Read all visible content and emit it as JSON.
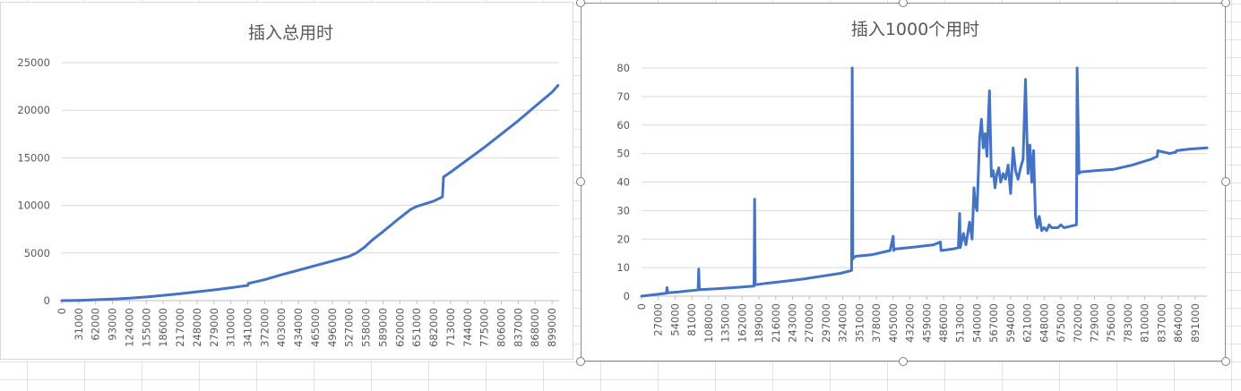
{
  "chart_data": [
    {
      "type": "line",
      "title": "插入总用时",
      "xlabel": "",
      "ylabel": "",
      "ylim": [
        0,
        25000
      ],
      "yticks": [
        "0",
        "5000",
        "10000",
        "15000",
        "20000",
        "25000"
      ],
      "xtick_labels": [
        "0",
        "31000",
        "62000",
        "93000",
        "124000",
        "155000",
        "186000",
        "217000",
        "248000",
        "279000",
        "310000",
        "341000",
        "372000",
        "403000",
        "434000",
        "465000",
        "496000",
        "527000",
        "558000",
        "589000",
        "620000",
        "651000",
        "682000",
        "713000",
        "744000",
        "775000",
        "806000",
        "837000",
        "868000",
        "899000"
      ],
      "xlim": [
        0,
        912000
      ],
      "grid": true,
      "legend": "none",
      "color": "#4472c4",
      "x": [
        0,
        31000,
        62000,
        93000,
        124000,
        155000,
        186000,
        217000,
        248000,
        279000,
        310000,
        325000,
        341000,
        342000,
        372000,
        403000,
        434000,
        465000,
        496000,
        527000,
        540000,
        555000,
        570000,
        589000,
        620000,
        640000,
        651000,
        682000,
        698000,
        700000,
        713000,
        744000,
        775000,
        806000,
        837000,
        868000,
        899000,
        910000
      ],
      "y": [
        0,
        30,
        90,
        160,
        260,
        390,
        550,
        730,
        930,
        1130,
        1350,
        1480,
        1600,
        1800,
        2200,
        2720,
        3200,
        3680,
        4150,
        4650,
        5000,
        5600,
        6400,
        7250,
        8700,
        9600,
        9900,
        10450,
        10900,
        13000,
        13500,
        14800,
        16100,
        17500,
        18900,
        20400,
        21900,
        22600
      ]
    },
    {
      "type": "line",
      "title": "插入1000个用时",
      "xlabel": "",
      "ylabel": "",
      "ylim": [
        0,
        80
      ],
      "yticks": [
        "0",
        "10",
        "20",
        "30",
        "40",
        "50",
        "60",
        "70",
        "80"
      ],
      "xtick_labels": [
        "0",
        "27000",
        "54000",
        "81000",
        "108000",
        "135000",
        "162000",
        "189000",
        "216000",
        "243000",
        "270000",
        "297000",
        "324000",
        "351000",
        "378000",
        "405000",
        "432000",
        "459000",
        "486000",
        "513000",
        "540000",
        "567000",
        "594000",
        "621000",
        "648000",
        "675000",
        "702000",
        "729000",
        "756000",
        "783000",
        "810000",
        "837000",
        "864000",
        "891000"
      ],
      "xlim": [
        0,
        910000
      ],
      "grid": true,
      "legend": "none",
      "color": "#4472c4",
      "x": [
        0,
        20000,
        40000,
        41000,
        42000,
        60000,
        91000,
        92000,
        93000,
        120000,
        150000,
        181000,
        182000,
        183000,
        200000,
        230000,
        260000,
        290000,
        320000,
        338000,
        339000,
        340000,
        341000,
        345000,
        370000,
        400000,
        405000,
        406000,
        407000,
        430000,
        470000,
        481000,
        482000,
        500000,
        510000,
        512000,
        513000,
        518000,
        522000,
        528000,
        532000,
        535000,
        537000,
        540000,
        544000,
        547000,
        550000,
        553000,
        556000,
        560000,
        563000,
        566000,
        569000,
        572000,
        575000,
        578000,
        582000,
        586000,
        590000,
        594000,
        598000,
        602000,
        606000,
        610000,
        614000,
        618000,
        620000,
        622000,
        625000,
        628000,
        631000,
        634000,
        637000,
        640000,
        644000,
        648000,
        652000,
        656000,
        660000,
        670000,
        675000,
        680000,
        700000,
        701000,
        704000,
        706000,
        730000,
        760000,
        790000,
        820000,
        830000,
        831000,
        850000,
        860000,
        861000,
        880000,
        910000
      ],
      "y": [
        0,
        0.5,
        1,
        3,
        1.2,
        1.5,
        2.2,
        9.5,
        2.3,
        2.6,
        3,
        3.5,
        34,
        4,
        4.5,
        5.2,
        6,
        7,
        8,
        9,
        80,
        13,
        13.5,
        14,
        14.5,
        16,
        21,
        16,
        16.5,
        17,
        18,
        19,
        16,
        16.5,
        17,
        29,
        17,
        22,
        18,
        26,
        20,
        38,
        32,
        30,
        55,
        62,
        52,
        57,
        49,
        72,
        42,
        44,
        38,
        43,
        45,
        40,
        43,
        41,
        46,
        36,
        52,
        44,
        41,
        45,
        48,
        76,
        58,
        43,
        53,
        40,
        51,
        28,
        24,
        28,
        23,
        24,
        23,
        25,
        24,
        24,
        25,
        24,
        25,
        80,
        43,
        43.5,
        44,
        44.5,
        46,
        48,
        49,
        51,
        50,
        50.5,
        51,
        51.5,
        52
      ]
    }
  ]
}
